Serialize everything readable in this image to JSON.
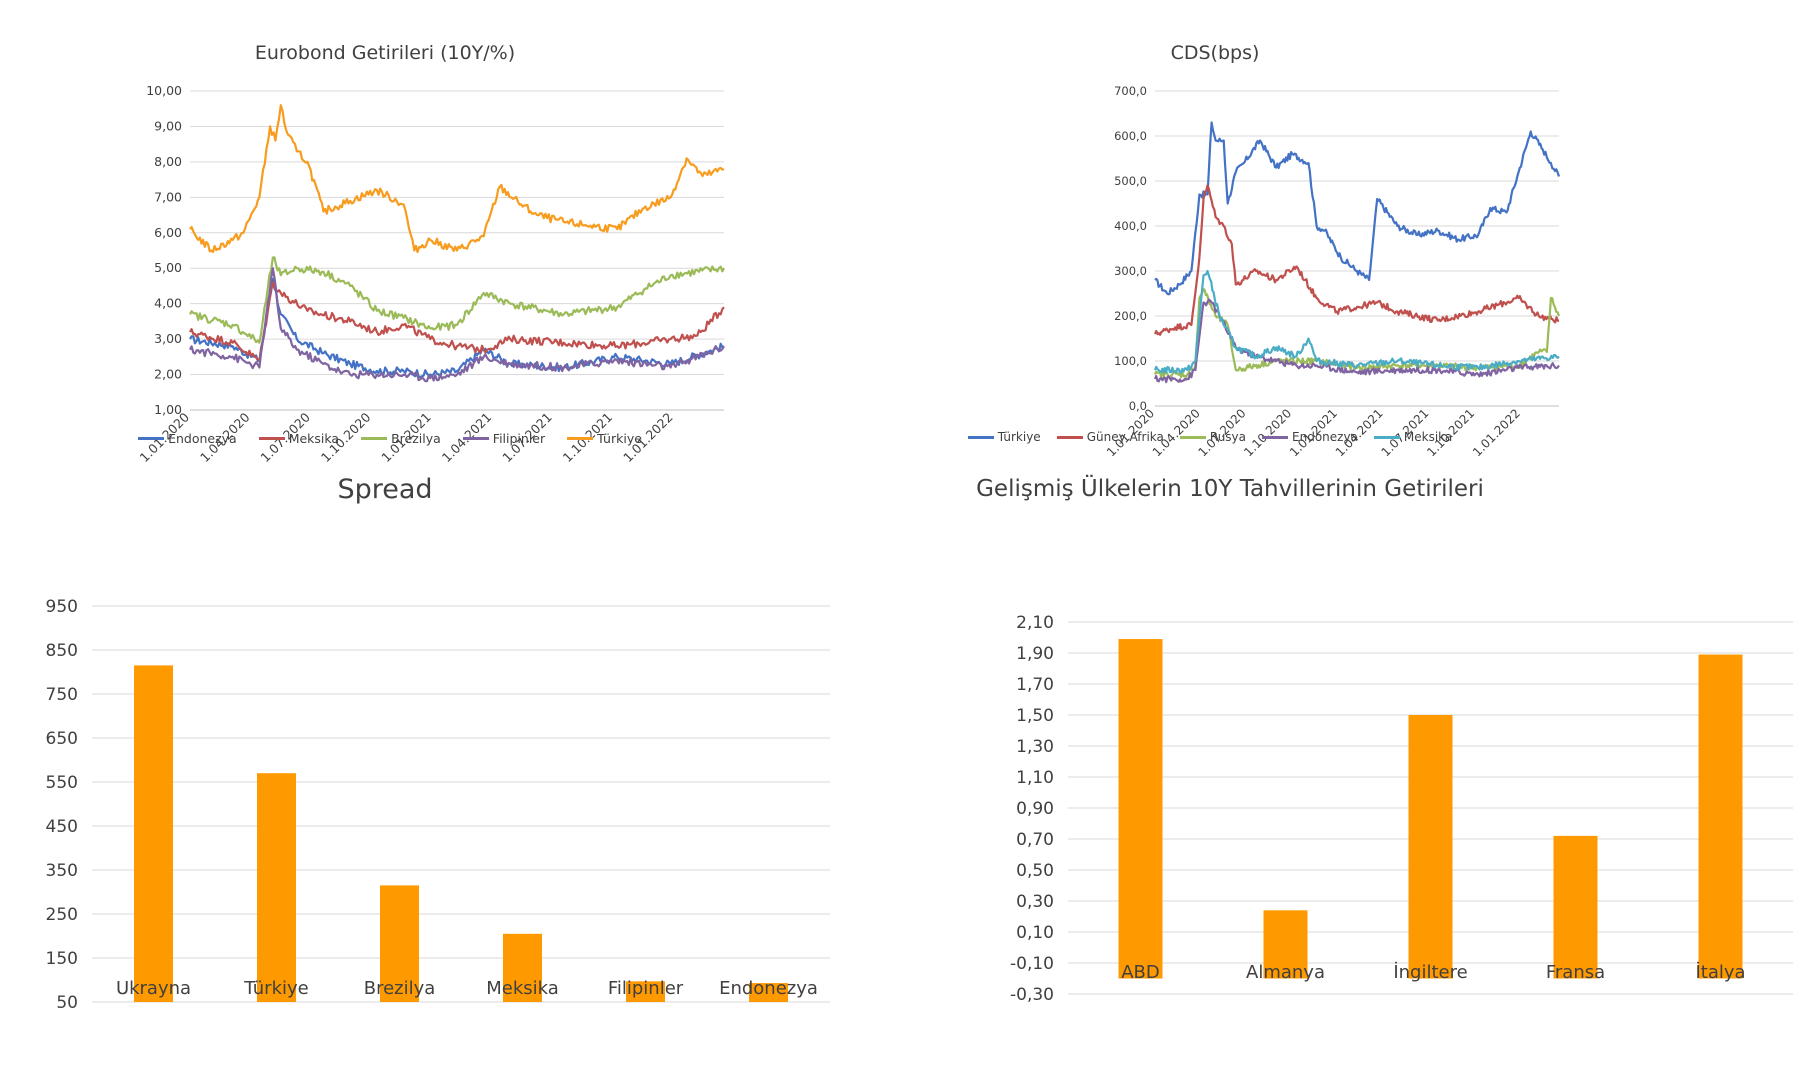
{
  "chart_data": [
    {
      "id": "eurobond",
      "type": "line",
      "title": "Eurobond Getirileri (10Y/%)",
      "ylim": [
        1.0,
        10.0
      ],
      "yticks": [
        "1,00",
        "2,00",
        "3,00",
        "4,00",
        "5,00",
        "6,00",
        "7,00",
        "8,00",
        "9,00",
        "10,00"
      ],
      "x_range": [
        "2020-01-01",
        "2022-03-15"
      ],
      "xtick_labels": [
        "1.01.2020",
        "1.04.2020",
        "1.07.2020",
        "1.10.2020",
        "1.01.2021",
        "1.04.2021",
        "1.07.2021",
        "1.10.2021",
        "1.01.2022"
      ],
      "grid": true,
      "legend_position": "bottom",
      "series": [
        {
          "name": "Endonezya",
          "color": "#4472C4",
          "x": [
            0,
            0.08,
            0.13,
            0.155,
            0.17,
            0.2,
            0.25,
            0.3,
            0.35,
            0.4,
            0.45,
            0.5,
            0.55,
            0.6,
            0.7,
            0.8,
            0.9,
            1.0
          ],
          "values": [
            3.0,
            2.8,
            2.4,
            4.7,
            3.7,
            3.0,
            2.6,
            2.3,
            2.1,
            2.1,
            2.0,
            2.1,
            2.7,
            2.3,
            2.2,
            2.5,
            2.3,
            2.8
          ]
        },
        {
          "name": "Meksika",
          "color": "#C0504D",
          "x": [
            0,
            0.08,
            0.13,
            0.155,
            0.17,
            0.22,
            0.3,
            0.35,
            0.4,
            0.45,
            0.5,
            0.55,
            0.6,
            0.7,
            0.8,
            0.9,
            0.95,
            1.0
          ],
          "values": [
            3.2,
            2.9,
            2.4,
            4.6,
            4.3,
            3.8,
            3.5,
            3.2,
            3.4,
            3.0,
            2.8,
            2.7,
            3.0,
            2.9,
            2.8,
            3.0,
            3.1,
            3.9
          ]
        },
        {
          "name": "Brezilya",
          "color": "#9BBB59",
          "x": [
            0,
            0.08,
            0.13,
            0.155,
            0.17,
            0.2,
            0.25,
            0.3,
            0.35,
            0.4,
            0.45,
            0.5,
            0.55,
            0.6,
            0.7,
            0.8,
            0.85,
            0.9,
            1.0
          ],
          "values": [
            3.7,
            3.4,
            2.9,
            5.3,
            4.8,
            5.0,
            4.9,
            4.5,
            3.8,
            3.6,
            3.3,
            3.4,
            4.3,
            4.0,
            3.7,
            3.9,
            4.4,
            4.8,
            5.0
          ]
        },
        {
          "name": "Filipinler",
          "color": "#8064A2",
          "x": [
            0,
            0.08,
            0.13,
            0.155,
            0.17,
            0.2,
            0.25,
            0.28,
            0.3,
            0.35,
            0.4,
            0.45,
            0.5,
            0.55,
            0.6,
            0.7,
            0.8,
            0.9,
            1.0
          ],
          "values": [
            2.7,
            2.5,
            2.2,
            5.0,
            3.3,
            2.7,
            2.3,
            2.1,
            2.0,
            2.0,
            2.0,
            1.9,
            2.0,
            2.5,
            2.3,
            2.2,
            2.4,
            2.2,
            2.8
          ]
        },
        {
          "name": "Türkiye",
          "color": "#F79C1E",
          "x": [
            0,
            0.04,
            0.08,
            0.1,
            0.13,
            0.15,
            0.16,
            0.17,
            0.18,
            0.2,
            0.22,
            0.25,
            0.3,
            0.35,
            0.4,
            0.42,
            0.45,
            0.5,
            0.55,
            0.58,
            0.62,
            0.65,
            0.7,
            0.75,
            0.8,
            0.85,
            0.9,
            0.93,
            0.96,
            1.0
          ],
          "values": [
            6.1,
            5.5,
            5.8,
            6.0,
            7.0,
            9.0,
            8.6,
            9.6,
            8.9,
            8.3,
            8.0,
            6.6,
            6.9,
            7.2,
            6.8,
            5.5,
            5.8,
            5.5,
            5.9,
            7.3,
            6.8,
            6.5,
            6.3,
            6.2,
            6.1,
            6.7,
            7.0,
            8.1,
            7.6,
            7.8
          ]
        }
      ]
    },
    {
      "id": "cds",
      "type": "line",
      "title": "CDS(bps)",
      "ylim": [
        0,
        700
      ],
      "yticks": [
        "0,0",
        "100,0",
        "200,0",
        "300,0",
        "400,0",
        "500,0",
        "600,0",
        "700,0"
      ],
      "x_range": [
        "2020-01-01",
        "2022-03-15"
      ],
      "xtick_labels": [
        "1.01.2020",
        "1.04.2020",
        "1.07.2020",
        "1.10.2020",
        "1.01.2021",
        "1.04.2021",
        "1.07.2021",
        "1.10.2021",
        "1.01.2022"
      ],
      "grid": true,
      "legend_position": "bottom",
      "series": [
        {
          "name": "Türkiye",
          "color": "#4472C4",
          "x": [
            0,
            0.03,
            0.06,
            0.09,
            0.11,
            0.13,
            0.14,
            0.15,
            0.17,
            0.18,
            0.2,
            0.22,
            0.26,
            0.3,
            0.34,
            0.38,
            0.4,
            0.42,
            0.46,
            0.5,
            0.53,
            0.55,
            0.6,
            0.65,
            0.7,
            0.75,
            0.8,
            0.83,
            0.87,
            0.9,
            0.93,
            0.96,
            0.98,
            1.0
          ],
          "values": [
            280,
            250,
            270,
            300,
            470,
            470,
            630,
            590,
            590,
            450,
            520,
            540,
            590,
            530,
            560,
            540,
            400,
            390,
            330,
            300,
            280,
            460,
            400,
            380,
            390,
            370,
            380,
            440,
            430,
            520,
            610,
            570,
            540,
            510
          ]
        },
        {
          "name": "Güney Afrika",
          "color": "#C0504D",
          "x": [
            0,
            0.05,
            0.09,
            0.11,
            0.12,
            0.13,
            0.15,
            0.17,
            0.19,
            0.2,
            0.25,
            0.3,
            0.35,
            0.4,
            0.45,
            0.5,
            0.55,
            0.6,
            0.7,
            0.8,
            0.9,
            0.95,
            1.0
          ],
          "values": [
            160,
            175,
            180,
            330,
            460,
            490,
            420,
            400,
            360,
            270,
            300,
            280,
            310,
            240,
            210,
            220,
            230,
            210,
            190,
            210,
            240,
            200,
            190
          ]
        },
        {
          "name": "Rusya",
          "color": "#9BBB59",
          "x": [
            0,
            0.08,
            0.1,
            0.11,
            0.12,
            0.15,
            0.18,
            0.2,
            0.3,
            0.4,
            0.5,
            0.6,
            0.7,
            0.8,
            0.9,
            0.95,
            0.97,
            0.98,
            1.0
          ],
          "values": [
            70,
            70,
            90,
            240,
            260,
            200,
            180,
            80,
            100,
            100,
            85,
            90,
            90,
            85,
            90,
            120,
            120,
            240,
            200
          ]
        },
        {
          "name": "Endonezya",
          "color": "#8064A2",
          "x": [
            0,
            0.08,
            0.1,
            0.12,
            0.14,
            0.16,
            0.2,
            0.25,
            0.3,
            0.35,
            0.4,
            0.5,
            0.6,
            0.7,
            0.8,
            0.9,
            1.0
          ],
          "values": [
            60,
            60,
            80,
            230,
            230,
            200,
            130,
            110,
            100,
            90,
            90,
            75,
            80,
            80,
            70,
            85,
            90
          ]
        },
        {
          "name": "Meksika",
          "color": "#4BACC6",
          "x": [
            0,
            0.08,
            0.1,
            0.12,
            0.13,
            0.16,
            0.2,
            0.25,
            0.3,
            0.35,
            0.38,
            0.4,
            0.5,
            0.6,
            0.7,
            0.8,
            0.9,
            1.0
          ],
          "values": [
            80,
            80,
            100,
            290,
            300,
            200,
            130,
            110,
            130,
            110,
            150,
            100,
            90,
            100,
            90,
            85,
            100,
            110
          ]
        }
      ]
    },
    {
      "id": "spread",
      "type": "bar",
      "title": "Spread",
      "categories": [
        "Ukrayna",
        "Türkiye",
        "Brezilya",
        "Meksika",
        "Filipinler",
        "Endonezya"
      ],
      "values": [
        815,
        570,
        315,
        205,
        97,
        93
      ],
      "ylim": [
        50,
        950
      ],
      "yticks": [
        "50",
        "150",
        "250",
        "350",
        "450",
        "550",
        "650",
        "750",
        "850",
        "950"
      ],
      "grid": true,
      "color": "#FF9900"
    },
    {
      "id": "bond10y",
      "type": "bar",
      "title": "Gelişmiş Ülkelerin 10Y Tahvillerinin Getirileri",
      "categories": [
        "ABD",
        "Almanya",
        "İngiltere",
        "Fransa",
        "İtalya"
      ],
      "values": [
        1.99,
        0.24,
        1.5,
        0.72,
        1.89
      ],
      "ylim": [
        -0.3,
        2.1
      ],
      "yticks": [
        "-0,30",
        "-0,10",
        "0,10",
        "0,30",
        "0,50",
        "0,70",
        "0,90",
        "1,10",
        "1,30",
        "1,50",
        "1,70",
        "1,90",
        "2,10"
      ],
      "grid": true,
      "color": "#FF9900"
    }
  ]
}
